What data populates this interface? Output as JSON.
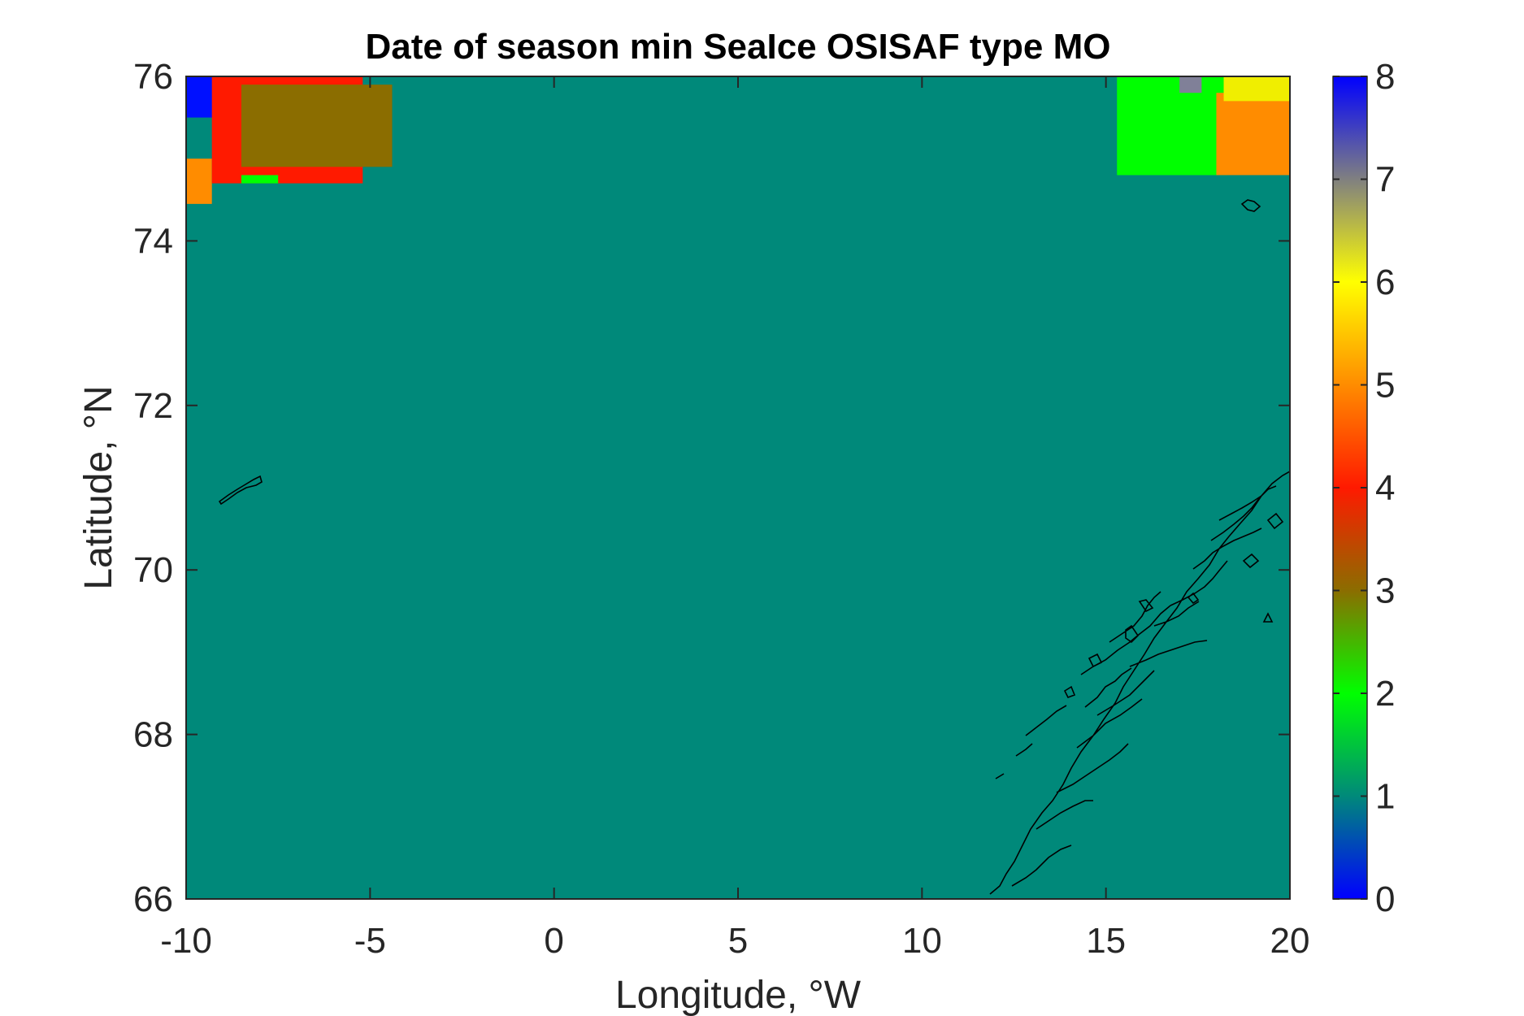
{
  "chart_data": {
    "type": "heatmap",
    "title": "Date of season min SeaIce OSISAF type MO",
    "xlabel": "Longitude, °W",
    "ylabel": "Latitude, °N",
    "xlim": [
      -10,
      20
    ],
    "ylim": [
      66,
      76
    ],
    "xticks": [
      -10,
      -5,
      0,
      5,
      10,
      15,
      20
    ],
    "yticks": [
      66,
      68,
      70,
      72,
      74,
      76
    ],
    "xtick_labels": [
      "-10",
      "-5",
      "0",
      "5",
      "10",
      "15",
      "20"
    ],
    "ytick_labels": [
      "66",
      "68",
      "70",
      "72",
      "74",
      "76"
    ],
    "colorbar": {
      "range": [
        0,
        8
      ],
      "ticks": [
        0,
        1,
        2,
        3,
        4,
        5,
        6,
        7,
        8
      ],
      "tick_labels": [
        "0",
        "1",
        "2",
        "3",
        "4",
        "5",
        "6",
        "7",
        "8"
      ],
      "stops": [
        {
          "v": 0,
          "color": "#0000ff"
        },
        {
          "v": 1,
          "color": "#00897a"
        },
        {
          "v": 2,
          "color": "#00ff00"
        },
        {
          "v": 3,
          "color": "#8b6d00"
        },
        {
          "v": 4,
          "color": "#ff1a00"
        },
        {
          "v": 5,
          "color": "#ff8c00"
        },
        {
          "v": 6,
          "color": "#ffff00"
        },
        {
          "v": 7,
          "color": "#808080"
        },
        {
          "v": 8,
          "color": "#0000ff"
        }
      ]
    },
    "background_value": 1,
    "background_color": "#00897a",
    "regions": [
      {
        "value": 8,
        "color": "#0010ff",
        "lon": [
          -10,
          -8.6
        ],
        "lat": [
          75.5,
          76
        ]
      },
      {
        "value": 7,
        "color": "#808098",
        "lon": [
          -8.6,
          -7.0
        ],
        "lat": [
          75.7,
          76
        ]
      },
      {
        "value": 5,
        "color": "#ff8c00",
        "lon": [
          -10,
          -9.3
        ],
        "lat": [
          74.45,
          75.0
        ]
      },
      {
        "value": 4.2,
        "color": "#ff1a00",
        "lon": [
          -9.3,
          -5.2
        ],
        "lat": [
          74.7,
          76
        ]
      },
      {
        "value": 3,
        "color": "#8b6d00",
        "lon": [
          -8.5,
          -4.4
        ],
        "lat": [
          74.9,
          75.9
        ]
      },
      {
        "value": 2,
        "color": "#00ff00",
        "lon": [
          -8.5,
          -7.5
        ],
        "lat": [
          74.7,
          74.8
        ]
      },
      {
        "value": 2,
        "color": "#00ff00",
        "lon": [
          15.3,
          18.3
        ],
        "lat": [
          74.8,
          76
        ]
      },
      {
        "value": 7,
        "color": "#808098",
        "lon": [
          17.0,
          17.6
        ],
        "lat": [
          75.8,
          76
        ]
      },
      {
        "value": 5,
        "color": "#ff8c00",
        "lon": [
          18.0,
          20.0
        ],
        "lat": [
          74.8,
          75.8
        ]
      },
      {
        "value": 6,
        "color": "#f0ee00",
        "lon": [
          18.2,
          20.0
        ],
        "lat": [
          75.7,
          76
        ]
      }
    ],
    "coastlines": [
      "Jan Mayen",
      "Bear Island",
      "Norway coast"
    ]
  }
}
